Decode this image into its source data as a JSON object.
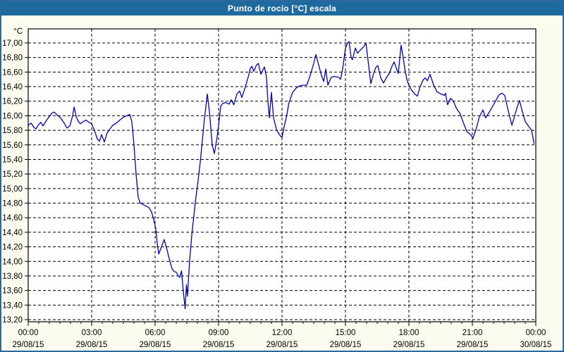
{
  "window": {
    "title": "Punto de rocío [°C] escala"
  },
  "colors": {
    "titlebar_bg": "#1e6a9e",
    "titlebar_text": "#ffffff",
    "frame_border": "#2d689d",
    "page_bg": "#fbfbf0",
    "plot_bg": "#ffffff",
    "grid": "#000000",
    "axis": "#000000",
    "label": "#000000",
    "line": "#0000b4"
  },
  "chart_data": {
    "type": "line",
    "title": "Punto de rocío [°C] escala",
    "y_unit_label": "°C",
    "ylim": [
      13.2,
      17.0
    ],
    "y_tick_step": 0.2,
    "y_tick_labels": [
      "17,00",
      "16,80",
      "16,60",
      "16,40",
      "16,20",
      "16,00",
      "15,80",
      "15,60",
      "15,40",
      "15,20",
      "15,00",
      "14,80",
      "14,60",
      "14,40",
      "14,20",
      "14,00",
      "13,80",
      "13,60",
      "13,40",
      "13,20"
    ],
    "xlim_hours": [
      0,
      24
    ],
    "x_major_step_hours": 3,
    "x_minor_step_hours": 0.5,
    "grid": "dashed",
    "legend": "none",
    "x_ticks": [
      {
        "hour": 0,
        "time": "00:00",
        "date": "29/08/15"
      },
      {
        "hour": 3,
        "time": "03:00",
        "date": "29/08/15"
      },
      {
        "hour": 6,
        "time": "06:00",
        "date": "29/08/15"
      },
      {
        "hour": 9,
        "time": "09:00",
        "date": "29/08/15"
      },
      {
        "hour": 12,
        "time": "12:00",
        "date": "29/08/15"
      },
      {
        "hour": 15,
        "time": "15:00",
        "date": "29/08/15"
      },
      {
        "hour": 18,
        "time": "18:00",
        "date": "29/08/15"
      },
      {
        "hour": 21,
        "time": "21:00",
        "date": "29/08/15"
      },
      {
        "hour": 24,
        "time": "00:00",
        "date": "30/08/15"
      }
    ],
    "series": [
      {
        "name": "Punto de rocío",
        "color": "#0000b4",
        "points": [
          [
            0.0,
            15.87
          ],
          [
            0.13,
            15.9
          ],
          [
            0.27,
            15.84
          ],
          [
            0.37,
            15.82
          ],
          [
            0.5,
            15.88
          ],
          [
            0.6,
            15.91
          ],
          [
            0.7,
            15.86
          ],
          [
            0.87,
            15.94
          ],
          [
            1.0,
            15.99
          ],
          [
            1.13,
            16.04
          ],
          [
            1.23,
            16.05
          ],
          [
            1.37,
            16.01
          ],
          [
            1.53,
            15.97
          ],
          [
            1.7,
            15.9
          ],
          [
            1.83,
            15.83
          ],
          [
            1.97,
            15.86
          ],
          [
            2.1,
            16.0
          ],
          [
            2.17,
            16.12
          ],
          [
            2.27,
            15.99
          ],
          [
            2.37,
            15.92
          ],
          [
            2.47,
            15.89
          ],
          [
            2.6,
            15.92
          ],
          [
            2.73,
            15.94
          ],
          [
            2.87,
            15.91
          ],
          [
            3.0,
            15.89
          ],
          [
            3.13,
            15.8
          ],
          [
            3.27,
            15.68
          ],
          [
            3.37,
            15.65
          ],
          [
            3.47,
            15.74
          ],
          [
            3.6,
            15.64
          ],
          [
            3.73,
            15.76
          ],
          [
            3.87,
            15.82
          ],
          [
            4.0,
            15.87
          ],
          [
            4.17,
            15.9
          ],
          [
            4.33,
            15.94
          ],
          [
            4.5,
            15.98
          ],
          [
            4.67,
            16.0
          ],
          [
            4.8,
            16.02
          ],
          [
            4.9,
            15.92
          ],
          [
            5.0,
            15.6
          ],
          [
            5.1,
            15.2
          ],
          [
            5.2,
            14.88
          ],
          [
            5.3,
            14.8
          ],
          [
            5.43,
            14.78
          ],
          [
            5.57,
            14.76
          ],
          [
            5.7,
            14.74
          ],
          [
            5.83,
            14.68
          ],
          [
            5.93,
            14.58
          ],
          [
            6.03,
            14.45
          ],
          [
            6.1,
            14.25
          ],
          [
            6.17,
            14.1
          ],
          [
            6.3,
            14.2
          ],
          [
            6.43,
            14.3
          ],
          [
            6.57,
            14.15
          ],
          [
            6.7,
            14.0
          ],
          [
            6.8,
            13.9
          ],
          [
            6.9,
            13.86
          ],
          [
            7.0,
            13.85
          ],
          [
            7.1,
            13.8
          ],
          [
            7.17,
            13.78
          ],
          [
            7.25,
            13.87
          ],
          [
            7.33,
            13.6
          ],
          [
            7.42,
            13.35
          ],
          [
            7.48,
            13.68
          ],
          [
            7.53,
            13.52
          ],
          [
            7.63,
            14.0
          ],
          [
            7.73,
            14.35
          ],
          [
            7.83,
            14.62
          ],
          [
            7.93,
            14.88
          ],
          [
            8.03,
            15.1
          ],
          [
            8.13,
            15.35
          ],
          [
            8.23,
            15.65
          ],
          [
            8.33,
            15.95
          ],
          [
            8.47,
            16.3
          ],
          [
            8.57,
            16.05
          ],
          [
            8.7,
            15.6
          ],
          [
            8.8,
            15.48
          ],
          [
            8.93,
            15.7
          ],
          [
            9.0,
            15.86
          ],
          [
            9.1,
            16.13
          ],
          [
            9.2,
            16.17
          ],
          [
            9.35,
            16.18
          ],
          [
            9.5,
            16.16
          ],
          [
            9.6,
            16.22
          ],
          [
            9.72,
            16.15
          ],
          [
            9.87,
            16.3
          ],
          [
            10.0,
            16.34
          ],
          [
            10.1,
            16.25
          ],
          [
            10.25,
            16.38
          ],
          [
            10.42,
            16.55
          ],
          [
            10.5,
            16.65
          ],
          [
            10.58,
            16.68
          ],
          [
            10.67,
            16.61
          ],
          [
            10.78,
            16.69
          ],
          [
            10.88,
            16.72
          ],
          [
            11.0,
            16.57
          ],
          [
            11.08,
            16.62
          ],
          [
            11.17,
            16.67
          ],
          [
            11.27,
            16.52
          ],
          [
            11.33,
            16.21
          ],
          [
            11.4,
            15.97
          ],
          [
            11.5,
            16.32
          ],
          [
            11.6,
            15.97
          ],
          [
            11.75,
            15.8
          ],
          [
            11.93,
            15.72
          ],
          [
            12.0,
            15.7
          ],
          [
            12.1,
            15.85
          ],
          [
            12.2,
            15.97
          ],
          [
            12.33,
            16.18
          ],
          [
            12.5,
            16.32
          ],
          [
            12.67,
            16.38
          ],
          [
            12.83,
            16.41
          ],
          [
            13.0,
            16.42
          ],
          [
            13.17,
            16.42
          ],
          [
            13.33,
            16.55
          ],
          [
            13.5,
            16.72
          ],
          [
            13.6,
            16.84
          ],
          [
            13.73,
            16.7
          ],
          [
            13.87,
            16.55
          ],
          [
            13.97,
            16.47
          ],
          [
            14.07,
            16.64
          ],
          [
            14.17,
            16.42
          ],
          [
            14.33,
            16.53
          ],
          [
            14.5,
            16.54
          ],
          [
            14.67,
            16.53
          ],
          [
            14.77,
            16.5
          ],
          [
            14.87,
            16.65
          ],
          [
            15.0,
            16.93
          ],
          [
            15.1,
            17.0
          ],
          [
            15.17,
            17.02
          ],
          [
            15.27,
            16.8
          ],
          [
            15.33,
            16.77
          ],
          [
            15.47,
            16.93
          ],
          [
            15.57,
            16.86
          ],
          [
            15.73,
            16.91
          ],
          [
            15.87,
            16.95
          ],
          [
            15.97,
            17.0
          ],
          [
            16.03,
            16.85
          ],
          [
            16.13,
            16.61
          ],
          [
            16.2,
            16.44
          ],
          [
            16.33,
            16.58
          ],
          [
            16.43,
            16.66
          ],
          [
            16.53,
            16.69
          ],
          [
            16.67,
            16.52
          ],
          [
            16.8,
            16.45
          ],
          [
            16.93,
            16.52
          ],
          [
            17.07,
            16.58
          ],
          [
            17.2,
            16.68
          ],
          [
            17.3,
            16.74
          ],
          [
            17.4,
            16.66
          ],
          [
            17.5,
            16.58
          ],
          [
            17.63,
            16.97
          ],
          [
            17.73,
            16.8
          ],
          [
            17.83,
            16.6
          ],
          [
            17.93,
            16.47
          ],
          [
            18.0,
            16.42
          ],
          [
            18.13,
            16.35
          ],
          [
            18.27,
            16.3
          ],
          [
            18.4,
            16.27
          ],
          [
            18.53,
            16.4
          ],
          [
            18.67,
            16.49
          ],
          [
            18.77,
            16.52
          ],
          [
            18.87,
            16.48
          ],
          [
            19.0,
            16.57
          ],
          [
            19.17,
            16.42
          ],
          [
            19.33,
            16.33
          ],
          [
            19.5,
            16.3
          ],
          [
            19.67,
            16.28
          ],
          [
            19.73,
            16.31
          ],
          [
            19.83,
            16.15
          ],
          [
            19.97,
            16.24
          ],
          [
            20.1,
            16.2
          ],
          [
            20.25,
            16.1
          ],
          [
            20.42,
            16.03
          ],
          [
            20.58,
            15.9
          ],
          [
            20.75,
            15.78
          ],
          [
            20.92,
            15.74
          ],
          [
            21.03,
            15.69
          ],
          [
            21.17,
            15.81
          ],
          [
            21.33,
            15.98
          ],
          [
            21.5,
            16.08
          ],
          [
            21.63,
            15.97
          ],
          [
            21.8,
            16.05
          ],
          [
            22.0,
            16.15
          ],
          [
            22.13,
            16.22
          ],
          [
            22.27,
            16.29
          ],
          [
            22.4,
            16.31
          ],
          [
            22.53,
            16.28
          ],
          [
            22.67,
            16.1
          ],
          [
            22.8,
            15.95
          ],
          [
            22.87,
            15.87
          ],
          [
            23.0,
            16.0
          ],
          [
            23.13,
            16.13
          ],
          [
            23.23,
            16.21
          ],
          [
            23.37,
            16.05
          ],
          [
            23.5,
            15.92
          ],
          [
            23.67,
            15.85
          ],
          [
            23.8,
            15.8
          ],
          [
            23.92,
            15.62
          ]
        ]
      }
    ]
  }
}
